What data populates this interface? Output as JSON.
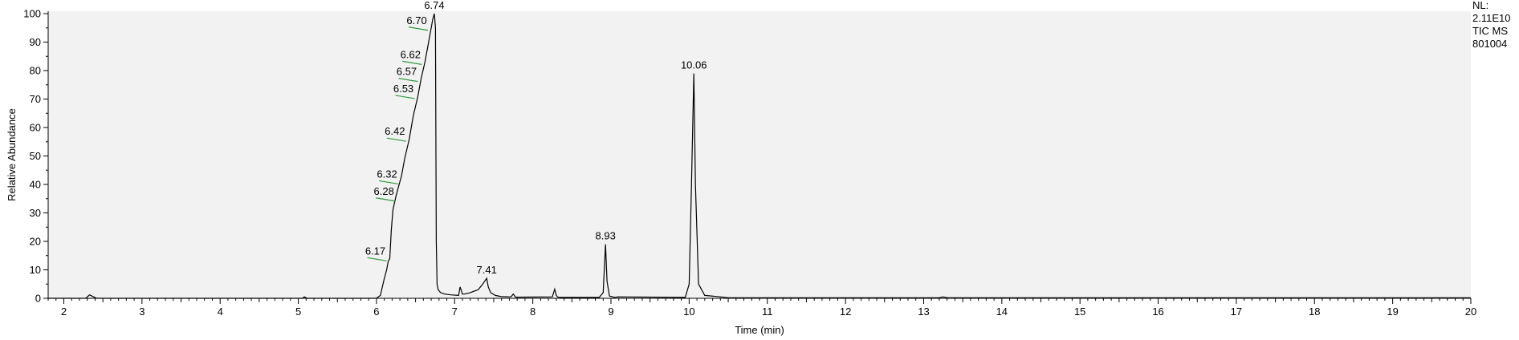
{
  "chart_data": {
    "type": "line",
    "title": "",
    "xlabel": "Time (min)",
    "ylabel": "Relative Abundance",
    "xlim": [
      1.8,
      20
    ],
    "ylim": [
      0,
      100
    ],
    "x_ticks": [
      2,
      3,
      4,
      5,
      6,
      7,
      8,
      9,
      10,
      11,
      12,
      13,
      14,
      15,
      16,
      17,
      18,
      19,
      20
    ],
    "y_ticks": [
      0,
      10,
      20,
      30,
      40,
      50,
      60,
      70,
      80,
      90,
      100
    ],
    "info_lines": [
      "NL:",
      "2.11E10",
      "TIC  MS",
      "801004"
    ],
    "grid": false,
    "colors": {
      "trace": "#000000",
      "peak_marker": "#2e9a3a",
      "plot_bg": "#f2f2f2"
    },
    "series": [
      {
        "x": [
          1.8,
          2.28,
          2.33,
          2.36,
          2.42,
          5.05,
          5.08,
          5.11,
          6.0,
          6.05,
          6.1,
          6.13,
          6.15,
          6.17,
          6.19,
          6.21,
          6.25,
          6.28,
          6.32,
          6.36,
          6.42,
          6.47,
          6.53,
          6.57,
          6.62,
          6.66,
          6.7,
          6.72,
          6.74,
          6.755,
          6.765,
          6.775,
          6.79,
          6.82,
          6.87,
          6.95,
          7.05,
          7.07,
          7.1,
          7.13,
          7.2,
          7.25,
          7.3,
          7.36,
          7.41,
          7.43,
          7.46,
          7.52,
          7.6,
          7.72,
          7.75,
          7.78,
          8.25,
          8.28,
          8.3,
          8.32,
          8.35,
          8.85,
          8.9,
          8.93,
          8.95,
          8.98,
          9.05,
          9.08,
          9.95,
          10.0,
          10.03,
          10.06,
          10.08,
          10.12,
          10.2,
          10.4,
          10.5,
          13.2,
          13.25,
          13.3,
          20.0
        ],
        "y": [
          0,
          0,
          1.2,
          0.8,
          0,
          0,
          0.5,
          0,
          0,
          1,
          7,
          10,
          13,
          14,
          24,
          31,
          36,
          39,
          43,
          49,
          56,
          64,
          71,
          77,
          83,
          89,
          95,
          98,
          100,
          95,
          20,
          5,
          3,
          2,
          1.5,
          1.2,
          1,
          4,
          1.5,
          1.5,
          2,
          2.5,
          3,
          5,
          7,
          4,
          2,
          1,
          0.6,
          0.5,
          1.5,
          0.4,
          0.5,
          3.2,
          1,
          0.4,
          0.3,
          0.3,
          2,
          19,
          6,
          0.8,
          0.3,
          0.5,
          0.3,
          5,
          40,
          79,
          40,
          5,
          1,
          0.5,
          0.2,
          0.2,
          0.5,
          0.2,
          0.2
        ]
      }
    ],
    "peak_labels": [
      {
        "label": "6.74",
        "x": 6.74,
        "y": 100
      },
      {
        "label": "6.70",
        "x": 6.7,
        "y": 95
      },
      {
        "label": "6.62",
        "x": 6.62,
        "y": 83
      },
      {
        "label": "6.57",
        "x": 6.57,
        "y": 77
      },
      {
        "label": "6.53",
        "x": 6.53,
        "y": 71
      },
      {
        "label": "6.42",
        "x": 6.42,
        "y": 56
      },
      {
        "label": "6.32",
        "x": 6.32,
        "y": 41
      },
      {
        "label": "6.28",
        "x": 6.28,
        "y": 35
      },
      {
        "label": "6.17",
        "x": 6.17,
        "y": 14
      },
      {
        "label": "7.41",
        "x": 7.41,
        "y": 7
      },
      {
        "label": "8.93",
        "x": 8.93,
        "y": 19
      },
      {
        "label": "10.06",
        "x": 10.06,
        "y": 79
      }
    ]
  }
}
